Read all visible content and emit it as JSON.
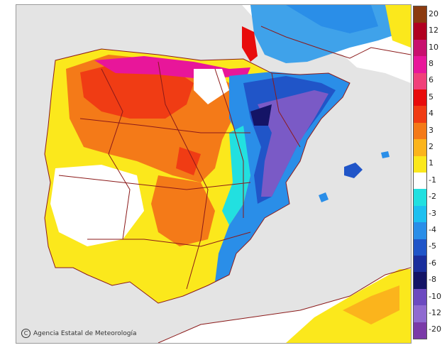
{
  "credit": {
    "copyright_symbol": "C",
    "agency": "Agencia Estatal de Meteorología"
  },
  "legend": {
    "items": [
      {
        "label": "20",
        "color": "#8b3a0f"
      },
      {
        "label": "12",
        "color": "#b00020"
      },
      {
        "label": "10",
        "color": "#c8106e"
      },
      {
        "label": "8",
        "color": "#e8169a"
      },
      {
        "label": "6",
        "color": "#f0407a"
      },
      {
        "label": "5",
        "color": "#e80c0c"
      },
      {
        "label": "4",
        "color": "#f03c14"
      },
      {
        "label": "3",
        "color": "#f47a18"
      },
      {
        "label": "2",
        "color": "#fbb41c"
      },
      {
        "label": "1",
        "color": "#fbe81c"
      },
      {
        "label": "-1",
        "color": "#ffffff"
      },
      {
        "label": "-2",
        "color": "#22e0e0"
      },
      {
        "label": "-3",
        "color": "#1ec0f0"
      },
      {
        "label": "-4",
        "color": "#2a8ee8"
      },
      {
        "label": "-5",
        "color": "#2055c8"
      },
      {
        "label": "-6",
        "color": "#1a2e9c"
      },
      {
        "label": "-8",
        "color": "#141466"
      },
      {
        "label": "-10",
        "color": "#6c4ac0"
      },
      {
        "label": "-12",
        "color": "#8f6ad0"
      },
      {
        "label": "-20",
        "color": "#7a3aa8"
      }
    ]
  },
  "colors": {
    "sea": "#e4e4e4",
    "border": "#8b1a1a"
  }
}
